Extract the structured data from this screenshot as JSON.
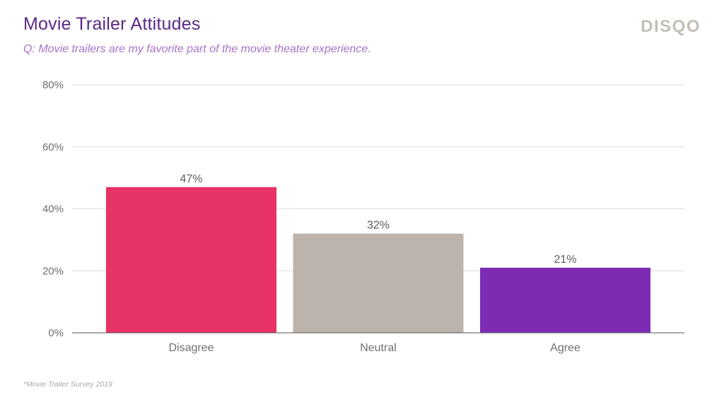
{
  "header": {
    "title": "Movie Trailer Attitudes",
    "subtitle": "Q: Movie trailers are my favorite part of the movie theater experience.",
    "logo": "DISQO"
  },
  "footer": {
    "note": "*Movie Trailer Survey 2019"
  },
  "chart_data": {
    "type": "bar",
    "categories": [
      "Disagree",
      "Neutral",
      "Agree"
    ],
    "values": [
      47,
      32,
      21
    ],
    "value_labels": [
      "47%",
      "32%",
      "21%"
    ],
    "colors": [
      "#e73366",
      "#bbb3ac",
      "#7d2bb3"
    ],
    "title": "Movie Trailer Attitudes",
    "xlabel": "",
    "ylabel": "",
    "ylim": [
      0,
      80
    ],
    "yticks": [
      0,
      20,
      40,
      60,
      80
    ],
    "ytick_labels": [
      "0%",
      "20%",
      "40%",
      "60%",
      "80%"
    ],
    "grid": true,
    "legend": "none"
  }
}
